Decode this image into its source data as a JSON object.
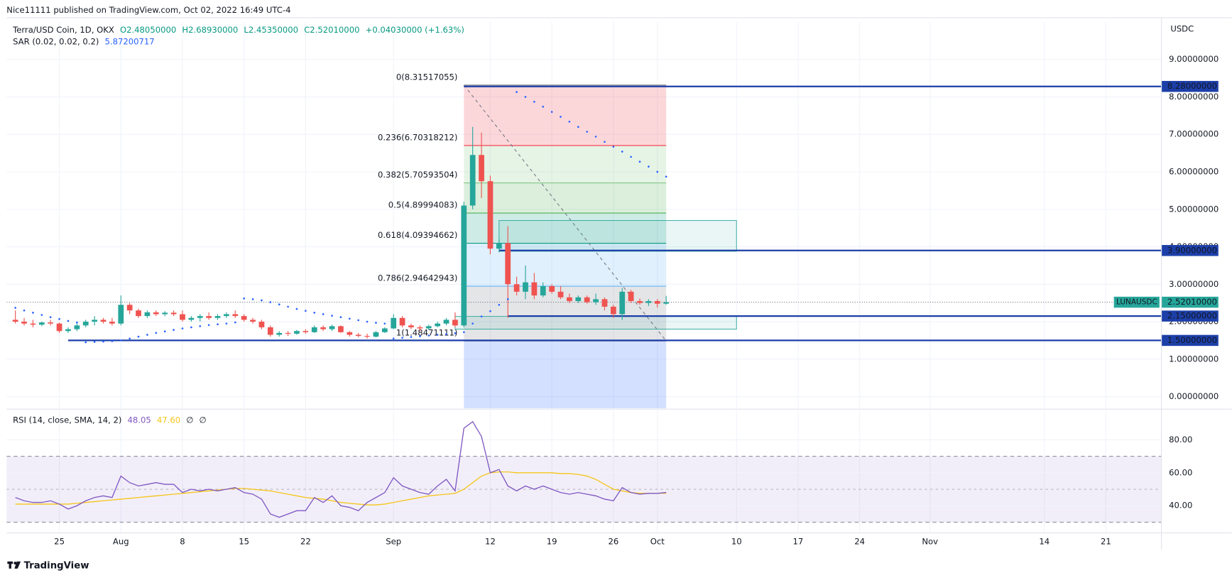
{
  "header": {
    "publisher": "Nice11111 published on TradingView.com, Oct 02, 2022 16:49 UTC-4"
  },
  "footer": {
    "brand": "TradingView"
  },
  "chart_data": [
    {
      "type": "candlestick",
      "title": "Terra/USD Coin, 1D, OKX",
      "ohlc_labels": [
        "O2.48050000",
        "H2.68930000",
        "L2.45350000",
        "C2.52010000"
      ],
      "change_label": "+0.04030000 (+1.63%)",
      "axis_unit": "USDC",
      "x": [
        "2022-07-20",
        "2022-07-21",
        "2022-07-22",
        "2022-07-23",
        "2022-07-24",
        "2022-07-25",
        "2022-07-26",
        "2022-07-27",
        "2022-07-28",
        "2022-07-29",
        "2022-07-30",
        "2022-07-31",
        "2022-08-01",
        "2022-08-02",
        "2022-08-03",
        "2022-08-04",
        "2022-08-05",
        "2022-08-06",
        "2022-08-07",
        "2022-08-08",
        "2022-08-09",
        "2022-08-10",
        "2022-08-11",
        "2022-08-12",
        "2022-08-13",
        "2022-08-14",
        "2022-08-15",
        "2022-08-16",
        "2022-08-17",
        "2022-08-18",
        "2022-08-19",
        "2022-08-20",
        "2022-08-21",
        "2022-08-22",
        "2022-08-23",
        "2022-08-24",
        "2022-08-25",
        "2022-08-26",
        "2022-08-27",
        "2022-08-28",
        "2022-08-29",
        "2022-08-30",
        "2022-08-31",
        "2022-09-01",
        "2022-09-02",
        "2022-09-03",
        "2022-09-04",
        "2022-09-05",
        "2022-09-06",
        "2022-09-07",
        "2022-09-08",
        "2022-09-09",
        "2022-09-10",
        "2022-09-11",
        "2022-09-12",
        "2022-09-13",
        "2022-09-14",
        "2022-09-15",
        "2022-09-16",
        "2022-09-17",
        "2022-09-18",
        "2022-09-19",
        "2022-09-20",
        "2022-09-21",
        "2022-09-22",
        "2022-09-23",
        "2022-09-24",
        "2022-09-25",
        "2022-09-26",
        "2022-09-27",
        "2022-09-28",
        "2022-09-29",
        "2022-09-30",
        "2022-10-01",
        "2022-10-02"
      ],
      "open": [
        2.05,
        2.0,
        1.95,
        1.92,
        1.98,
        1.95,
        1.75,
        1.8,
        1.9,
        2.0,
        2.05,
        2.0,
        1.95,
        2.45,
        2.3,
        2.15,
        2.25,
        2.2,
        2.24,
        2.2,
        2.05,
        2.1,
        2.15,
        2.1,
        2.15,
        2.2,
        2.15,
        2.05,
        2.0,
        1.85,
        1.65,
        1.7,
        1.68,
        1.75,
        1.72,
        1.85,
        1.8,
        1.88,
        1.72,
        1.65,
        1.62,
        1.6,
        1.72,
        1.82,
        2.1,
        1.9,
        1.85,
        1.82,
        1.88,
        1.95,
        2.05,
        1.9,
        5.1,
        6.45,
        5.75,
        3.95,
        4.1,
        3.0,
        2.8,
        3.05,
        2.7,
        2.95,
        2.8,
        2.65,
        2.55,
        2.65,
        2.52,
        2.6,
        2.4,
        2.2,
        2.8,
        2.55,
        2.5,
        2.55,
        2.4805
      ],
      "high": [
        2.3,
        2.1,
        2.05,
        2.0,
        2.05,
        1.98,
        1.85,
        1.95,
        2.05,
        2.15,
        2.1,
        2.1,
        2.7,
        2.5,
        2.35,
        2.3,
        2.3,
        2.28,
        2.3,
        2.3,
        2.15,
        2.2,
        2.25,
        2.2,
        2.25,
        2.3,
        2.2,
        2.1,
        2.05,
        1.9,
        1.75,
        1.75,
        1.78,
        1.8,
        1.9,
        1.9,
        1.92,
        1.9,
        1.75,
        1.7,
        1.68,
        1.75,
        1.85,
        2.2,
        2.15,
        1.95,
        1.9,
        1.92,
        2.0,
        2.1,
        2.25,
        5.2,
        7.2,
        7.05,
        5.9,
        4.2,
        4.55,
        3.2,
        3.5,
        3.3,
        3.05,
        3.0,
        2.95,
        2.75,
        2.7,
        2.7,
        2.75,
        2.65,
        2.45,
        2.9,
        2.85,
        2.62,
        2.6,
        2.6,
        2.6893
      ],
      "low": [
        1.95,
        1.9,
        1.85,
        1.88,
        1.9,
        1.7,
        1.7,
        1.75,
        1.85,
        1.9,
        1.95,
        1.9,
        1.9,
        2.2,
        2.1,
        2.1,
        2.15,
        2.15,
        2.15,
        2.0,
        2.0,
        2.0,
        2.05,
        2.05,
        2.1,
        2.1,
        2.0,
        1.95,
        1.8,
        1.6,
        1.6,
        1.62,
        1.65,
        1.68,
        1.7,
        1.75,
        1.75,
        1.7,
        1.6,
        1.58,
        1.55,
        1.58,
        1.7,
        1.8,
        1.85,
        1.8,
        1.75,
        1.78,
        1.85,
        1.9,
        1.85,
        1.85,
        5.0,
        5.3,
        3.8,
        3.85,
        2.1,
        2.7,
        2.6,
        2.6,
        2.65,
        2.75,
        2.6,
        2.5,
        2.5,
        2.48,
        2.45,
        2.3,
        2.1,
        2.05,
        2.5,
        2.45,
        2.42,
        2.38,
        2.4535
      ],
      "close": [
        2.0,
        1.95,
        1.92,
        1.98,
        1.95,
        1.75,
        1.8,
        1.9,
        2.0,
        2.05,
        2.0,
        1.95,
        2.45,
        2.3,
        2.15,
        2.25,
        2.2,
        2.24,
        2.2,
        2.05,
        2.1,
        2.15,
        2.1,
        2.15,
        2.2,
        2.15,
        2.05,
        2.0,
        1.85,
        1.65,
        1.7,
        1.68,
        1.75,
        1.72,
        1.85,
        1.8,
        1.88,
        1.72,
        1.65,
        1.62,
        1.6,
        1.72,
        1.82,
        2.1,
        1.9,
        1.85,
        1.82,
        1.88,
        1.95,
        2.05,
        1.9,
        5.1,
        6.45,
        5.75,
        3.95,
        4.1,
        3.0,
        2.8,
        3.05,
        2.7,
        2.95,
        2.8,
        2.65,
        2.55,
        2.65,
        2.52,
        2.6,
        2.4,
        2.2,
        2.8,
        2.55,
        2.5,
        2.55,
        2.48,
        2.5201
      ],
      "up_color": "#26a69a",
      "down_color": "#ef5350",
      "xlim": [
        "2022-07-19",
        "2022-11-27"
      ],
      "xticks": [
        {
          "value": "2022-07-25",
          "label": "25"
        },
        {
          "value": "2022-08-01",
          "label": "Aug"
        },
        {
          "value": "2022-08-08",
          "label": "8"
        },
        {
          "value": "2022-08-15",
          "label": "15"
        },
        {
          "value": "2022-08-22",
          "label": "22"
        },
        {
          "value": "2022-09-01",
          "label": "Sep"
        },
        {
          "value": "2022-09-12",
          "label": "12"
        },
        {
          "value": "2022-09-19",
          "label": "19"
        },
        {
          "value": "2022-09-26",
          "label": "26"
        },
        {
          "value": "2022-10-01",
          "label": "Oct"
        },
        {
          "value": "2022-10-10",
          "label": "10"
        },
        {
          "value": "2022-10-17",
          "label": "17"
        },
        {
          "value": "2022-10-24",
          "label": "24"
        },
        {
          "value": "2022-11-01",
          "label": "Nov"
        },
        {
          "value": "2022-11-14",
          "label": "14"
        },
        {
          "value": "2022-11-21",
          "label": "21"
        }
      ],
      "ylim": [
        -0.314,
        10.0
      ],
      "yticks": [
        {
          "value": 0,
          "label": "0.00000000"
        },
        {
          "value": 1,
          "label": "1.00000000"
        },
        {
          "value": 2,
          "label": "2.00000000"
        },
        {
          "value": 3,
          "label": "3.00000000"
        },
        {
          "value": 4,
          "label": "4.00000000"
        },
        {
          "value": 5,
          "label": "5.00000000"
        },
        {
          "value": 6,
          "label": "6.00000000"
        },
        {
          "value": 7,
          "label": "7.00000000"
        },
        {
          "value": 8,
          "label": "8.00000000"
        },
        {
          "value": 9,
          "label": "9.00000000"
        }
      ],
      "grid": true,
      "sar": {
        "name": "SAR (0.02, 0.02, 0.2)",
        "value_label": "5.87200717",
        "color": "#2962ff",
        "values": [
          2.37,
          2.3,
          2.24,
          2.18,
          2.12,
          2.07,
          2.02,
          1.98,
          1.45,
          1.46,
          1.47,
          1.48,
          1.5,
          1.55,
          1.6,
          1.65,
          1.7,
          1.74,
          1.78,
          1.82,
          1.85,
          1.88,
          1.91,
          1.93,
          1.95,
          1.98,
          2.62,
          2.6,
          2.57,
          2.52,
          2.46,
          2.4,
          2.34,
          2.29,
          2.24,
          2.2,
          2.16,
          2.12,
          2.08,
          2.04,
          2.0,
          1.97,
          1.95,
          1.55,
          1.57,
          1.59,
          1.61,
          1.63,
          1.65,
          1.67,
          1.69,
          1.72,
          1.95,
          2.14,
          2.28,
          2.45,
          2.6,
          8.13,
          8.0,
          7.87,
          7.74,
          7.6,
          7.47,
          7.34,
          7.2,
          7.07,
          6.94,
          6.8,
          6.67,
          6.54,
          6.4,
          6.27,
          6.14,
          6.0,
          5.87200717
        ]
      },
      "fib": {
        "from": "2022-09-09",
        "to": "2022-10-02",
        "below_color": "#2962ff",
        "levels": [
          {
            "label": "0(8.31517055)",
            "price": 8.31517055,
            "color": "#787b86"
          },
          {
            "label": "0.236(6.70318212)",
            "price": 6.70318212,
            "color": "#f23645"
          },
          {
            "label": "0.382(5.70593504)",
            "price": 5.70593504,
            "color": "#81c784"
          },
          {
            "label": "0.5(4.89994083)",
            "price": 4.89994083,
            "color": "#4caf50"
          },
          {
            "label": "0.618(4.09394662)",
            "price": 4.09394662,
            "color": "#089981"
          },
          {
            "label": "0.786(2.94642943)",
            "price": 2.94642943,
            "color": "#64b5f6"
          },
          {
            "label": "1(1.48471111)",
            "price": 1.48471111,
            "color": "#787b86"
          }
        ]
      },
      "hlines": [
        {
          "from": "2022-09-09",
          "value": 8.28,
          "label": "8.28000000"
        },
        {
          "from": "2022-09-13",
          "value": 3.9,
          "label": "3.90000000"
        },
        {
          "from": "2022-09-14",
          "value": 2.15,
          "label": "2.15000000"
        },
        {
          "from": "2022-07-26",
          "value": 1.5,
          "label": "1.50000000"
        }
      ],
      "hline_color": "#1c3fa8",
      "boxes": [
        {
          "from": "2022-09-13",
          "to": "2022-10-10",
          "top": 4.7,
          "bottom": 3.88,
          "color": "#26a69a"
        },
        {
          "from": "2022-09-08",
          "to": "2022-10-10",
          "top": 2.14,
          "bottom": 1.8,
          "color": "#26a69a"
        }
      ],
      "last": {
        "symbol": "LUNAUSDC",
        "value": 2.5201,
        "label": "2.52010000",
        "color": "#26a69a"
      }
    },
    {
      "type": "line",
      "title": "RSI (14, close, SMA, 14, 2)",
      "extra_labels": [
        "∅",
        "∅"
      ],
      "series": [
        {
          "value_label": "48.05",
          "color": "#7e57c2",
          "values": [
            45,
            43,
            42,
            42,
            43,
            41,
            38,
            40,
            43,
            45,
            46,
            45,
            58,
            54,
            52,
            53,
            54,
            53,
            53,
            48,
            50,
            49,
            50,
            49,
            50,
            51,
            48,
            47,
            44,
            35,
            33,
            35,
            37,
            37,
            45,
            42,
            46,
            40,
            39,
            37,
            42,
            45,
            48,
            57,
            52,
            50,
            48,
            47,
            52,
            56,
            49,
            87,
            91,
            82,
            60,
            62,
            52,
            49,
            52,
            50,
            52,
            50,
            48,
            47,
            48,
            47,
            46,
            44,
            43,
            51,
            48,
            47,
            47.5,
            47.5,
            48.05
          ]
        },
        {
          "value_label": "47.60",
          "color": "#f5c518",
          "values": [
            41,
            41,
            41,
            41,
            41,
            41,
            41,
            41.5,
            42,
            42.5,
            43,
            43.5,
            44,
            44.5,
            45,
            45.5,
            46,
            46.5,
            47,
            47.5,
            48,
            48.5,
            49,
            49.5,
            50,
            50.5,
            50.5,
            50,
            49.5,
            49,
            48,
            47,
            46,
            45,
            44.5,
            44,
            43,
            42,
            41.5,
            41,
            40.5,
            40.5,
            41,
            42,
            43,
            44,
            45,
            46,
            46.5,
            47,
            47.5,
            50,
            54,
            58,
            60,
            60.5,
            60.5,
            60,
            60,
            60,
            60,
            60,
            59.5,
            59.5,
            59,
            58,
            56,
            53,
            50,
            49,
            48,
            47.5,
            47.5,
            47.5,
            47.6
          ]
        }
      ],
      "ylim": [
        23.8,
        98.1
      ],
      "yticks": [
        {
          "value": 40,
          "label": "40.00"
        },
        {
          "value": 60,
          "label": "60.00"
        },
        {
          "value": 80,
          "label": "80.00"
        }
      ],
      "bands": {
        "upper": 70,
        "middle": 50,
        "lower": 30,
        "color": "#7e57c2"
      }
    }
  ]
}
